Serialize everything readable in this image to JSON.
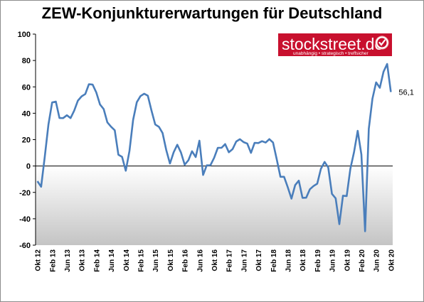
{
  "chart_data": {
    "type": "line",
    "title": "ZEW-Konjunkturerwartungen für Deutschland",
    "xlabel": "",
    "ylabel": "",
    "ylim": [
      -60,
      100
    ],
    "yticks": [
      "100",
      "80",
      "60",
      "40",
      "20",
      "0",
      "-20",
      "-40",
      "-60"
    ],
    "xticks": [
      "Okt 12",
      "Feb 13",
      "Jun 13",
      "Okt 13",
      "Feb 14",
      "Jun 14",
      "Okt 14",
      "Feb 15",
      "Jun 15",
      "Okt 15",
      "Feb 16",
      "Jun 16",
      "Okt 16",
      "Feb 17",
      "Jun 17",
      "Okt 17",
      "Feb 18",
      "Jun 18",
      "Okt 18",
      "Feb 19",
      "Jun 19",
      "Okt 19",
      "Feb 20",
      "Jun 20",
      "Okt 20"
    ],
    "grid": false,
    "series": [
      {
        "color": "#4a7ebb",
        "values": [
          -11.5,
          -15.7,
          6.9,
          31.5,
          48.2,
          48.8,
          36.4,
          36.3,
          38.5,
          36.3,
          42.0,
          49.6,
          52.8,
          54.6,
          62.0,
          61.7,
          55.7,
          46.6,
          43.2,
          33.1,
          29.8,
          27.1,
          8.6,
          6.9,
          -3.6,
          11.5,
          34.9,
          48.4,
          53.0,
          54.8,
          53.3,
          41.9,
          31.5,
          29.7,
          25.0,
          12.1,
          1.9,
          10.4,
          16.1,
          10.2,
          1.0,
          4.3,
          11.2,
          6.8,
          19.2,
          -6.8,
          0.5,
          0.6,
          6.2,
          13.8,
          13.8,
          16.6,
          10.4,
          12.8,
          18.6,
          20.3,
          18.1,
          17.0,
          10.0,
          17.6,
          17.4,
          18.8,
          17.8,
          20.4,
          17.8,
          5.1,
          -8.2,
          -8.2,
          -16.1,
          -24.7,
          -14.5,
          -11.1,
          -24.1,
          -24.0,
          -17.6,
          -15.2,
          -13.4,
          -2.1,
          3.1,
          -1.1,
          -21.1,
          -24.5,
          -44.1,
          -22.5,
          -22.8,
          -2.1,
          10.7,
          26.7,
          8.7,
          -49.5,
          28.2,
          51.0,
          63.4,
          59.3,
          71.5,
          77.4,
          56.1
        ]
      }
    ],
    "end_label": "56,1",
    "negative_area_shading": true
  },
  "brand": {
    "name": "stockstreet.de",
    "tagline": "unabhängig • strategisch • treffsicher",
    "color": "#c8102e",
    "icon": "checkmark-badge-icon"
  }
}
